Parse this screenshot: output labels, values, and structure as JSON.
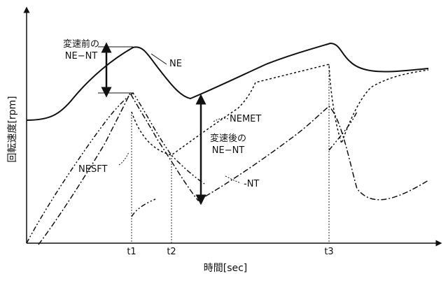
{
  "chart_data": {
    "type": "line",
    "xlabel": "時間[sec]",
    "ylabel": "回転速度[rpm]",
    "tick_labels": [
      "t1",
      "t2",
      "t3"
    ],
    "annotations": {
      "before_line1": "変速前の",
      "before_line2": "NE−NT",
      "after_line1": "変速後の",
      "after_line2": "NE−NT"
    },
    "series": [
      {
        "name": "NE",
        "style": "solid"
      },
      {
        "name": "NEMET",
        "style": "dotted"
      },
      {
        "name": "NESFT",
        "style": "dash-dot-dot"
      },
      {
        "name": "-NT",
        "style": "dash-dot"
      }
    ]
  }
}
